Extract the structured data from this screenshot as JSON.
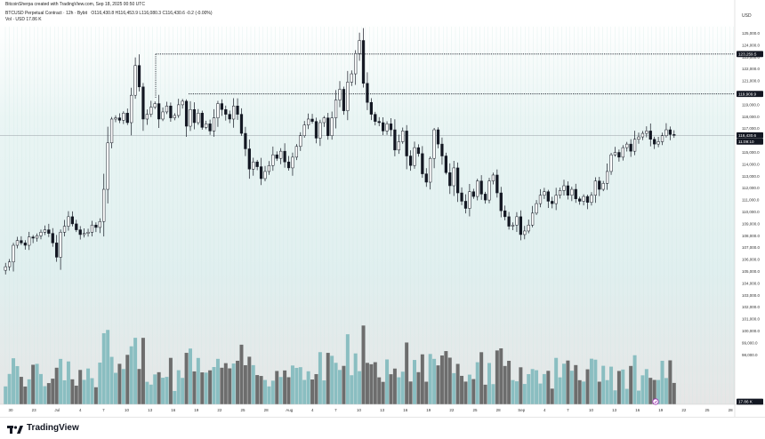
{
  "header": {
    "byline": "BitcoinSherpa created with TradingView.com, Sep 18, 2025 00:50 UTC",
    "symbol_line": "BTCUSD Perpetual Contract · 12h · Bybit",
    "ohlc": "O116,430.8 H116,453.9 L116,080.3 C116,430.6 -0.2 (-0.00%)",
    "volume_line": "Vol · USD  17.86 K"
  },
  "axis": {
    "currency": "USD",
    "price_ticks": [
      "125,000.0",
      "124,000.0",
      "123,000.0",
      "122,000.0",
      "121,000.0",
      "120,000.0",
      "119,000.0",
      "118,000.0",
      "117,000.0",
      "116,000.0",
      "115,000.0",
      "114,000.0",
      "113,000.0",
      "112,000.0",
      "111,000.0",
      "110,000.0",
      "109,000.0",
      "108,000.0",
      "107,000.0",
      "106,000.0",
      "105,000.0",
      "104,000.0",
      "103,000.0",
      "102,000.0",
      "101,000.0",
      "100,000.0",
      "99,000.0",
      "98,000.0"
    ],
    "time_ticks": [
      "30",
      "23",
      "Jul",
      "4",
      "7",
      "10",
      "13",
      "16",
      "19",
      "22",
      "25",
      "28",
      "Aug",
      "4",
      "7",
      "10",
      "13",
      "16",
      "19",
      "22",
      "25",
      "28",
      "Sep",
      "4",
      "7",
      "10",
      "13",
      "16",
      "19",
      "22",
      "25",
      "28"
    ]
  },
  "price_tags": [
    {
      "label": "123,259.5",
      "type": "level",
      "bg": "#131722",
      "fg": "#ffffff"
    },
    {
      "label": "119,909.9",
      "type": "level",
      "bg": "#131722",
      "fg": "#ffffff"
    },
    {
      "label": "116,430.6",
      "type": "last",
      "bg": "#131722",
      "fg": "#ffffff"
    },
    {
      "label": "11:09:10",
      "type": "countdown",
      "bg": "#131722",
      "fg": "#ffffff"
    },
    {
      "label": "17.86 K",
      "type": "volume",
      "bg": "#131722",
      "fg": "#ffffff"
    }
  ],
  "footer": {
    "brand": "TradingView"
  },
  "colors": {
    "up_body": "#ffffff",
    "down_body": "#131722",
    "wick": "#131722",
    "vol_up": "#7fb9bd",
    "vol_down": "#5f5f5f",
    "bg_top": "#ffffff",
    "bg_band": "#e4f2f2",
    "bg_lower": "#e6e6e6"
  },
  "chart_data": {
    "type": "candlestick",
    "title": "BTCUSD Perpetual Contract · 12h · Bybit",
    "ylabel": "USD",
    "ylim": [
      98000,
      125000
    ],
    "horizontal_levels": [
      123259.5,
      119909.9
    ],
    "last_price": 116430.6,
    "close_path": [
      105400,
      105800,
      107200,
      107600,
      107400,
      107200,
      107900,
      107800,
      108000,
      108300,
      108500,
      108200,
      107400,
      106200,
      108300,
      108800,
      109600,
      109000,
      108500,
      108100,
      108200,
      108300,
      108900,
      108700,
      109200,
      111900,
      115800,
      117800,
      117900,
      117700,
      118300,
      117500,
      119800,
      122300,
      120500,
      117800,
      118200,
      118800,
      119100,
      117800,
      118400,
      118900,
      117900,
      118100,
      119000,
      119300,
      117200,
      118600,
      117500,
      118300,
      117100,
      117400,
      116800,
      117900,
      119100,
      118600,
      118200,
      117800,
      118900,
      118200,
      116600,
      115300,
      113600,
      114200,
      113800,
      112800,
      113400,
      113900,
      114800,
      114500,
      115100,
      114200,
      113700,
      114600,
      115500,
      116400,
      117300,
      117800,
      117600,
      116200,
      117500,
      117900,
      116400,
      117900,
      119400,
      120300,
      118500,
      120900,
      121600,
      123300,
      124400,
      120800,
      119200,
      118200,
      117600,
      117500,
      116800,
      117400,
      116900,
      115200,
      115900,
      116800,
      114700,
      113900,
      115400,
      114900,
      113200,
      112500,
      114500,
      116900,
      115700,
      114700,
      113300,
      112200,
      113700,
      111600,
      110900,
      110300,
      111700,
      111300,
      112600,
      111500,
      111000,
      112600,
      113100,
      111600,
      110100,
      109600,
      108800,
      108900,
      109600,
      108100,
      108400,
      108900,
      109900,
      110700,
      111400,
      111700,
      110900,
      110700,
      111400,
      111800,
      112200,
      111400,
      111900,
      111100,
      110900,
      111300,
      110800,
      111400,
      112600,
      111900,
      112400,
      113400,
      114800,
      115000,
      114600,
      115400,
      115700,
      115100,
      116100,
      116300,
      116600,
      116800,
      116100,
      115700,
      115900,
      116400,
      116900,
      116500,
      116430
    ]
  }
}
